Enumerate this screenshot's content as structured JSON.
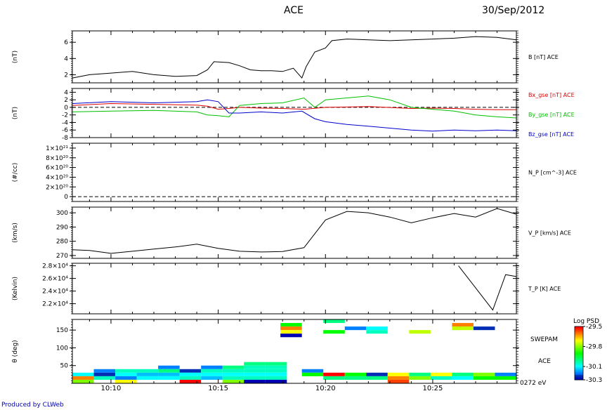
{
  "header": {
    "mission": "ACE",
    "date": "30/Sep/2012"
  },
  "footer": {
    "credit": "Produced by CLWeb"
  },
  "time_axis": {
    "start_min": 8.2,
    "end_min": 28.9,
    "ticks": [
      {
        "t": 10,
        "label": "10:10"
      },
      {
        "t": 15,
        "label": "10:15"
      },
      {
        "t": 20,
        "label": "10:20"
      },
      {
        "t": 25,
        "label": "10:25"
      }
    ]
  },
  "chart_data": [
    {
      "type": "line",
      "id": "b",
      "ylabel": "(nT)",
      "ylim": [
        1,
        7.4
      ],
      "yticks": [
        2,
        4,
        6
      ],
      "ytick_labels": [
        "2",
        "4",
        "6"
      ],
      "series": [
        {
          "name": "B [nT] ACE",
          "color": "#000000",
          "x": [
            8.2,
            9,
            10,
            11,
            12,
            13,
            14,
            14.5,
            14.8,
            15.5,
            16,
            16.5,
            17,
            17.5,
            18,
            18.5,
            18.9,
            19.1,
            19.5,
            20,
            20.3,
            21,
            22,
            23,
            24,
            25,
            26,
            27,
            28,
            28.9
          ],
          "y": [
            1.6,
            2.0,
            2.2,
            2.4,
            2.0,
            1.8,
            1.9,
            2.6,
            3.6,
            3.5,
            3.1,
            2.6,
            2.5,
            2.5,
            2.4,
            2.8,
            1.6,
            3.0,
            4.8,
            5.3,
            6.2,
            6.4,
            6.3,
            6.2,
            6.3,
            6.4,
            6.5,
            6.7,
            6.6,
            6.3
          ]
        }
      ]
    },
    {
      "type": "line",
      "id": "bxyz",
      "ylabel": "(nT)",
      "ylim": [
        -8,
        5
      ],
      "yticks": [
        -8,
        -6,
        -4,
        -2,
        0,
        2,
        4
      ],
      "ytick_labels": [
        "-8",
        "-6",
        "-4",
        "-2",
        "0",
        "2",
        "4"
      ],
      "zero_line": true,
      "series": [
        {
          "name": "Bx_gse [nT] ACE",
          "color": "#dd0000",
          "x": [
            8.2,
            10,
            12,
            14,
            14.5,
            15,
            15.5,
            16,
            17,
            18,
            19,
            20,
            22,
            24,
            25,
            26,
            27,
            28,
            28.9
          ],
          "y": [
            0.5,
            1.0,
            0.8,
            0.6,
            0.3,
            -0.5,
            -0.3,
            0.0,
            -0.2,
            -0.3,
            -0.5,
            0.0,
            0.2,
            -0.3,
            -0.2,
            -0.3,
            -0.5,
            -0.6,
            -0.6
          ]
        },
        {
          "name": "By_gse [nT] ACE",
          "color": "#00c000",
          "x": [
            8.2,
            10,
            12,
            14,
            14.5,
            15,
            15.5,
            16,
            17,
            18,
            19,
            19.5,
            20,
            21,
            22,
            23,
            24,
            25,
            26,
            27,
            28,
            28.9
          ],
          "y": [
            -1.2,
            -1.0,
            -0.8,
            -1.2,
            -2.0,
            -2.2,
            -2.5,
            0.5,
            1.0,
            1.2,
            2.5,
            0.0,
            2.0,
            2.5,
            3.0,
            2.0,
            0.0,
            -0.5,
            -1.0,
            -2.0,
            -2.5,
            -2.8
          ]
        },
        {
          "name": "Bz_gse [nT] ACE",
          "color": "#0000cc",
          "x": [
            8.2,
            10,
            12,
            14,
            14.5,
            15,
            15.5,
            16,
            17,
            18,
            18.9,
            19.5,
            20,
            21,
            22,
            23,
            24,
            25,
            26,
            27,
            28,
            28.9
          ],
          "y": [
            1.0,
            1.5,
            1.2,
            1.5,
            2.0,
            1.5,
            -1.5,
            -1.5,
            -1.2,
            -1.5,
            -1.0,
            -3.0,
            -3.8,
            -4.5,
            -5.0,
            -5.5,
            -6.0,
            -6.3,
            -6.0,
            -6.2,
            -6.0,
            -6.2
          ]
        }
      ]
    },
    {
      "type": "line",
      "id": "np",
      "ylabel": "(#/cc)",
      "ylim": [
        -1,
        11
      ],
      "yticks": [
        0,
        2,
        4,
        6,
        8,
        10
      ],
      "ytick_labels": [
        "0",
        "2×10²⁰",
        "4×10²⁰",
        "6×10²⁰",
        "8×10²⁰",
        "1×10²¹"
      ],
      "zero_line": true,
      "series": [
        {
          "name": "N_P [cm^-3] ACE",
          "color": "#000000",
          "x": [],
          "y": []
        }
      ]
    },
    {
      "type": "line",
      "id": "vp",
      "ylabel": "(km/s)",
      "ylim": [
        268,
        304
      ],
      "yticks": [
        270,
        280,
        290,
        300
      ],
      "ytick_labels": [
        "270",
        "280",
        "290",
        "300"
      ],
      "series": [
        {
          "name": "V_P [km/s] ACE",
          "color": "#000000",
          "x": [
            8.2,
            9,
            10,
            11,
            12,
            13,
            14,
            15,
            16,
            17,
            18,
            19,
            20,
            21,
            22,
            23,
            24,
            25,
            26,
            27,
            28,
            28.9
          ],
          "y": [
            274,
            273.5,
            271.5,
            273,
            274.5,
            276,
            278,
            275,
            273,
            272.5,
            272.8,
            275.5,
            295,
            301,
            300,
            297,
            293,
            296.5,
            299.5,
            297,
            303,
            299
          ]
        }
      ]
    },
    {
      "type": "line",
      "id": "tp",
      "ylabel": "(Kelvin)",
      "ylim": [
        20400,
        28400
      ],
      "yticks": [
        22000,
        24000,
        26000,
        28000
      ],
      "ytick_labels": [
        "2.2×10⁴",
        "2.4×10⁴",
        "2.6×10⁴",
        "2.8×10⁴"
      ],
      "series": [
        {
          "name": "T_P [K] ACE",
          "color": "#000000",
          "x": [
            26.2,
            27,
            27.8,
            28.4,
            28.9
          ],
          "y": [
            28000,
            24500,
            21000,
            26600,
            26300
          ]
        }
      ]
    },
    {
      "type": "heatmap",
      "id": "pad",
      "ylabel": "θ (deg)",
      "ylim": [
        0,
        180
      ],
      "yticks": [
        50,
        100,
        150
      ],
      "ytick_labels": [
        "50",
        "100",
        "150"
      ],
      "right_labels": [
        "SWEPAM",
        "ACE",
        "0272 eV"
      ],
      "colorbar": {
        "title": "Log PSD",
        "min": -30.3,
        "max": -29.5,
        "ticks": [
          -29.5,
          -29.8,
          -30.1,
          -30.3
        ],
        "tick_labels": [
          "-29.5",
          "-29.8",
          "-30.1",
          "-30.3"
        ]
      },
      "cells": [
        {
          "t0": 8.2,
          "t1": 9.2,
          "a0": 20,
          "a1": 30,
          "v": -30.1
        },
        {
          "t0": 8.2,
          "t1": 9.2,
          "a0": 10,
          "a1": 20,
          "v": -29.6
        },
        {
          "t0": 8.2,
          "t1": 9.2,
          "a0": 0,
          "a1": 10,
          "v": -29.8
        },
        {
          "t0": 9.2,
          "t1": 10.2,
          "a0": 30,
          "a1": 40,
          "v": -30.2
        },
        {
          "t0": 9.2,
          "t1": 10.2,
          "a0": 20,
          "a1": 30,
          "v": -30.25
        },
        {
          "t0": 9.2,
          "t1": 10.2,
          "a0": 10,
          "a1": 20,
          "v": -30.05
        },
        {
          "t0": 10.2,
          "t1": 11.2,
          "a0": 30,
          "a1": 40,
          "v": -30.05
        },
        {
          "t0": 10.2,
          "t1": 11.2,
          "a0": 20,
          "a1": 30,
          "v": -30.1
        },
        {
          "t0": 10.2,
          "t1": 11.2,
          "a0": 10,
          "a1": 20,
          "v": -30.2
        },
        {
          "t0": 10.2,
          "t1": 11.2,
          "a0": 0,
          "a1": 10,
          "v": -29.7
        },
        {
          "t0": 11.2,
          "t1": 12.2,
          "a0": 30,
          "a1": 40,
          "v": -30.05
        },
        {
          "t0": 11.2,
          "t1": 12.2,
          "a0": 20,
          "a1": 30,
          "v": -30.15
        },
        {
          "t0": 11.2,
          "t1": 12.2,
          "a0": 10,
          "a1": 20,
          "v": -30.1
        },
        {
          "t0": 12.2,
          "t1": 13.2,
          "a0": 40,
          "a1": 50,
          "v": -30.2
        },
        {
          "t0": 12.2,
          "t1": 13.2,
          "a0": 30,
          "a1": 40,
          "v": -30.0
        },
        {
          "t0": 12.2,
          "t1": 13.2,
          "a0": 20,
          "a1": 30,
          "v": -30.15
        },
        {
          "t0": 12.2,
          "t1": 13.2,
          "a0": 10,
          "a1": 20,
          "v": -30.1
        },
        {
          "t0": 13.2,
          "t1": 14.2,
          "a0": 30,
          "a1": 40,
          "v": -30.25
        },
        {
          "t0": 13.2,
          "t1": 14.2,
          "a0": 20,
          "a1": 30,
          "v": -30.1
        },
        {
          "t0": 13.2,
          "t1": 14.2,
          "a0": 10,
          "a1": 20,
          "v": -30.05
        },
        {
          "t0": 13.2,
          "t1": 14.2,
          "a0": 0,
          "a1": 10,
          "v": -29.5
        },
        {
          "t0": 14.2,
          "t1": 15.2,
          "a0": 40,
          "a1": 50,
          "v": -30.2
        },
        {
          "t0": 14.2,
          "t1": 15.2,
          "a0": 30,
          "a1": 40,
          "v": -30.05
        },
        {
          "t0": 14.2,
          "t1": 15.2,
          "a0": 20,
          "a1": 30,
          "v": -30.1
        },
        {
          "t0": 14.2,
          "t1": 15.2,
          "a0": 10,
          "a1": 20,
          "v": -30.15
        },
        {
          "t0": 15.2,
          "t1": 16.2,
          "a0": 40,
          "a1": 50,
          "v": -30.0
        },
        {
          "t0": 15.2,
          "t1": 16.2,
          "a0": 30,
          "a1": 40,
          "v": -30.05
        },
        {
          "t0": 15.2,
          "t1": 16.2,
          "a0": 20,
          "a1": 30,
          "v": -30.1
        },
        {
          "t0": 15.2,
          "t1": 16.2,
          "a0": 10,
          "a1": 20,
          "v": -30.05
        },
        {
          "t0": 15.2,
          "t1": 16.2,
          "a0": 0,
          "a1": 10,
          "v": -29.8
        },
        {
          "t0": 16.2,
          "t1": 17.2,
          "a0": 50,
          "a1": 60,
          "v": -30.0
        },
        {
          "t0": 16.2,
          "t1": 17.2,
          "a0": 40,
          "a1": 50,
          "v": -30.05
        },
        {
          "t0": 16.2,
          "t1": 17.2,
          "a0": 30,
          "a1": 40,
          "v": -30.05
        },
        {
          "t0": 16.2,
          "t1": 17.2,
          "a0": 20,
          "a1": 30,
          "v": -30.1
        },
        {
          "t0": 16.2,
          "t1": 17.2,
          "a0": 10,
          "a1": 20,
          "v": -30.05
        },
        {
          "t0": 16.2,
          "t1": 17.2,
          "a0": 0,
          "a1": 10,
          "v": -30.3
        },
        {
          "t0": 17.2,
          "t1": 18.2,
          "a0": 50,
          "a1": 60,
          "v": -30.0
        },
        {
          "t0": 17.2,
          "t1": 18.2,
          "a0": 40,
          "a1": 50,
          "v": -30.05
        },
        {
          "t0": 17.2,
          "t1": 18.2,
          "a0": 30,
          "a1": 40,
          "v": -30.05
        },
        {
          "t0": 17.2,
          "t1": 18.2,
          "a0": 20,
          "a1": 30,
          "v": -30.1
        },
        {
          "t0": 17.2,
          "t1": 18.2,
          "a0": 10,
          "a1": 20,
          "v": -30.05
        },
        {
          "t0": 17.2,
          "t1": 18.2,
          "a0": 0,
          "a1": 10,
          "v": -30.3
        },
        {
          "t0": 17.9,
          "t1": 18.9,
          "a0": 160,
          "a1": 170,
          "v": -29.9
        },
        {
          "t0": 17.9,
          "t1": 18.9,
          "a0": 150,
          "a1": 160,
          "v": -29.6
        },
        {
          "t0": 17.9,
          "t1": 18.9,
          "a0": 140,
          "a1": 150,
          "v": -29.7
        },
        {
          "t0": 17.9,
          "t1": 18.9,
          "a0": 130,
          "a1": 140,
          "v": -30.3
        },
        {
          "t0": 18.9,
          "t1": 19.9,
          "a0": 30,
          "a1": 40,
          "v": -30.2
        },
        {
          "t0": 18.9,
          "t1": 19.9,
          "a0": 20,
          "a1": 30,
          "v": -29.9
        },
        {
          "t0": 19.9,
          "t1": 20.9,
          "a0": 170,
          "a1": 180,
          "v": -30.0
        },
        {
          "t0": 19.9,
          "t1": 20.9,
          "a0": 140,
          "a1": 150,
          "v": -29.9
        },
        {
          "t0": 19.9,
          "t1": 20.9,
          "a0": 20,
          "a1": 30,
          "v": -29.5
        },
        {
          "t0": 19.9,
          "t1": 20.9,
          "a0": 10,
          "a1": 20,
          "v": -30.0
        },
        {
          "t0": 20.9,
          "t1": 21.9,
          "a0": 150,
          "a1": 160,
          "v": -30.2
        },
        {
          "t0": 20.9,
          "t1": 21.9,
          "a0": 20,
          "a1": 30,
          "v": -29.9
        },
        {
          "t0": 20.9,
          "t1": 21.9,
          "a0": 10,
          "a1": 20,
          "v": -30.0
        },
        {
          "t0": 21.9,
          "t1": 22.9,
          "a0": 150,
          "a1": 160,
          "v": -30.1
        },
        {
          "t0": 21.9,
          "t1": 22.9,
          "a0": 140,
          "a1": 150,
          "v": -30.05
        },
        {
          "t0": 21.9,
          "t1": 22.9,
          "a0": 20,
          "a1": 30,
          "v": -30.25
        },
        {
          "t0": 21.9,
          "t1": 22.9,
          "a0": 10,
          "a1": 20,
          "v": -30.0
        },
        {
          "t0": 22.9,
          "t1": 23.9,
          "a0": 20,
          "a1": 30,
          "v": -29.7
        },
        {
          "t0": 22.9,
          "t1": 23.9,
          "a0": 10,
          "a1": 20,
          "v": -29.6
        },
        {
          "t0": 22.9,
          "t1": 23.9,
          "a0": 0,
          "a1": 10,
          "v": -29.55
        },
        {
          "t0": 23.9,
          "t1": 24.9,
          "a0": 140,
          "a1": 150,
          "v": -29.75
        },
        {
          "t0": 23.9,
          "t1": 24.9,
          "a0": 20,
          "a1": 30,
          "v": -30.0
        },
        {
          "t0": 23.9,
          "t1": 24.9,
          "a0": 10,
          "a1": 20,
          "v": -29.8
        },
        {
          "t0": 24.9,
          "t1": 25.9,
          "a0": 20,
          "a1": 30,
          "v": -29.7
        },
        {
          "t0": 24.9,
          "t1": 25.9,
          "a0": 10,
          "a1": 20,
          "v": -30.05
        },
        {
          "t0": 25.9,
          "t1": 26.9,
          "a0": 160,
          "a1": 170,
          "v": -29.6
        },
        {
          "t0": 25.9,
          "t1": 26.9,
          "a0": 150,
          "a1": 160,
          "v": -29.75
        },
        {
          "t0": 25.9,
          "t1": 26.9,
          "a0": 20,
          "a1": 30,
          "v": -30.0
        },
        {
          "t0": 25.9,
          "t1": 26.9,
          "a0": 10,
          "a1": 20,
          "v": -30.1
        },
        {
          "t0": 26.9,
          "t1": 27.9,
          "a0": 150,
          "a1": 160,
          "v": -30.25
        },
        {
          "t0": 26.9,
          "t1": 27.9,
          "a0": 20,
          "a1": 30,
          "v": -29.8
        },
        {
          "t0": 26.9,
          "t1": 27.9,
          "a0": 10,
          "a1": 20,
          "v": -29.9
        },
        {
          "t0": 27.9,
          "t1": 28.9,
          "a0": 20,
          "a1": 30,
          "v": -30.2
        },
        {
          "t0": 27.9,
          "t1": 28.9,
          "a0": 10,
          "a1": 20,
          "v": -29.9
        }
      ]
    }
  ]
}
